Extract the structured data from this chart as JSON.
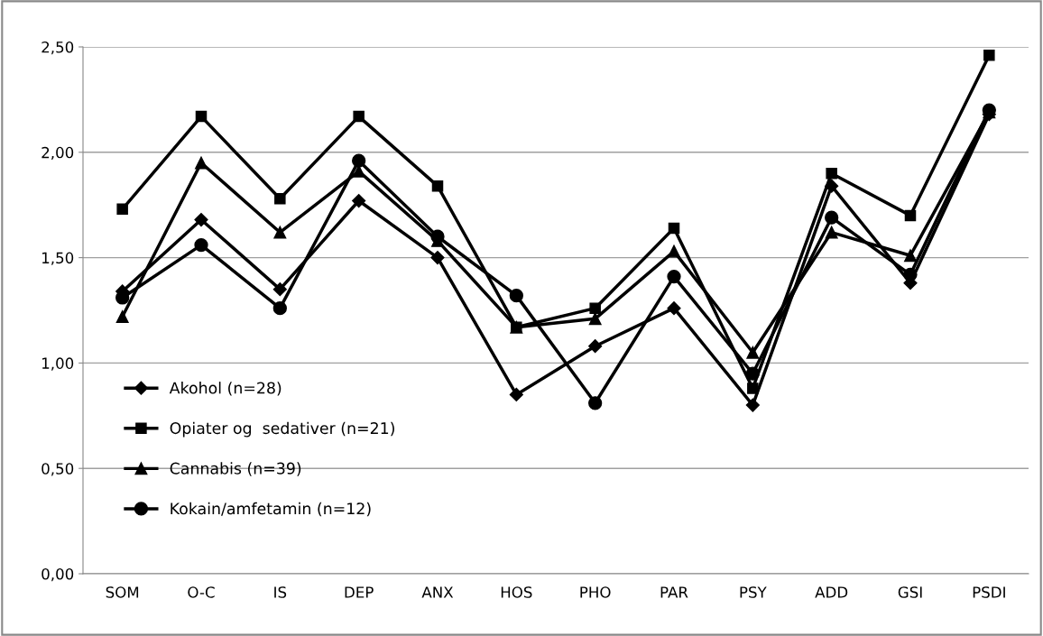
{
  "chart_data": {
    "type": "line",
    "categories": [
      "SOM",
      "O-C",
      "IS",
      "DEP",
      "ANX",
      "HOS",
      "PHO",
      "PAR",
      "PSY",
      "ADD",
      "GSI",
      "PSDI"
    ],
    "series": [
      {
        "name": "Akohol (n=28)",
        "color": "#000000",
        "marker": "diamond",
        "values": [
          1.34,
          1.68,
          1.35,
          1.77,
          1.5,
          0.85,
          1.08,
          1.26,
          0.8,
          1.84,
          1.38,
          2.18
        ]
      },
      {
        "name": "Opiater og  sedativer (n=21)",
        "color": "#000000",
        "marker": "square",
        "values": [
          1.73,
          2.17,
          1.78,
          2.17,
          1.84,
          1.17,
          1.26,
          1.64,
          0.88,
          1.9,
          1.7,
          2.46
        ]
      },
      {
        "name": "Cannabis (n=39)",
        "color": "#000000",
        "marker": "triangle",
        "values": [
          1.22,
          1.95,
          1.62,
          1.91,
          1.58,
          1.17,
          1.21,
          1.53,
          1.05,
          1.62,
          1.51,
          2.19
        ]
      },
      {
        "name": "Kokain/amfetamin (n=12)",
        "color": "#000000",
        "marker": "circle",
        "values": [
          1.31,
          1.56,
          1.26,
          1.96,
          1.6,
          1.32,
          0.81,
          1.41,
          0.95,
          1.69,
          1.42,
          2.2
        ]
      }
    ],
    "ylim": [
      0,
      2.5
    ],
    "yticks": [
      {
        "value": 0,
        "label": "0,00"
      },
      {
        "value": 0.5,
        "label": "0,50"
      },
      {
        "value": 1,
        "label": "1,00"
      },
      {
        "value": 1.5,
        "label": "1,50"
      },
      {
        "value": 2,
        "label": "2,00"
      },
      {
        "value": 2.5,
        "label": "2,50"
      }
    ],
    "grid": "y",
    "legend": "lower left",
    "line_style": "solid"
  }
}
